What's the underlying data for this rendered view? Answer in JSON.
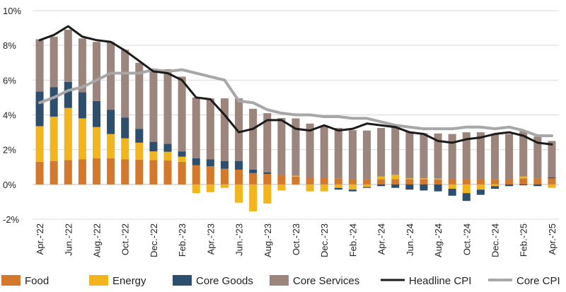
{
  "chart_data": {
    "type": "bar",
    "stacked": true,
    "categories": [
      "Apr.-'22",
      "May-'22",
      "Jun.-'22",
      "Jul.-'22",
      "Aug.-'22",
      "Sep.-'22",
      "Oct.-'22",
      "Nov.-'22",
      "Dec.-'22",
      "Jan.-'23",
      "Feb.-'23",
      "Mar.-'23",
      "Apr.-'23",
      "May-'23",
      "Jun.-'23",
      "Jul.-'23",
      "Aug.-'23",
      "Sep.-'23",
      "Oct.-'23",
      "Nov.-'23",
      "Dec.-'23",
      "Jan.-'24",
      "Feb.-'24",
      "Mar.-'24",
      "Apr.-'24",
      "May-'24",
      "Jun.-'24",
      "Jul.-'24",
      "Aug.-'24",
      "Sep.-'24",
      "Oct.-'24",
      "Nov.-'24",
      "Dec.-'24",
      "Jan.-'25",
      "Feb.-'25",
      "Mar.-'25",
      "Apr.-'25"
    ],
    "tick_labels": [
      "Apr.-'22",
      "Jun.-'22",
      "Aug.-'22",
      "Oct.-'22",
      "Dec.-'22",
      "Feb.-'23",
      "Apr.-'23",
      "Jun.-'23",
      "Aug.-'23",
      "Oct.-'23",
      "Dec.-'23",
      "Feb.-'24",
      "Apr.-'24",
      "Jun.-'24",
      "Aug.-'24",
      "Oct.-'24",
      "Dec.-'24",
      "Feb.-'25",
      "Apr.-'25"
    ],
    "y_ticks": [
      -2,
      0,
      2,
      4,
      6,
      8,
      10
    ],
    "y_tick_labels": [
      "-2%",
      "0%",
      "2%",
      "4%",
      "6%",
      "8%",
      "10%"
    ],
    "ylim": [
      -2,
      10
    ],
    "grid": true,
    "legend_position": "bottom",
    "bar_series": [
      {
        "name": "Food",
        "color": "#d4782b",
        "values": [
          1.3,
          1.35,
          1.4,
          1.45,
          1.5,
          1.5,
          1.45,
          1.42,
          1.4,
          1.38,
          1.3,
          1.1,
          1.05,
          0.9,
          0.85,
          0.65,
          0.6,
          0.52,
          0.45,
          0.4,
          0.4,
          0.35,
          0.32,
          0.3,
          0.3,
          0.3,
          0.3,
          0.3,
          0.28,
          0.3,
          0.3,
          0.3,
          0.3,
          0.3,
          0.35,
          0.35,
          0.35
        ]
      },
      {
        "name": "Energy",
        "color": "#f2b51d",
        "values": [
          2.05,
          2.55,
          3.0,
          2.35,
          1.8,
          1.4,
          1.2,
          0.98,
          0.5,
          0.5,
          0.3,
          -0.5,
          -0.45,
          -0.2,
          -1.05,
          -1.55,
          -1.1,
          -0.35,
          0.05,
          -0.4,
          -0.4,
          -0.2,
          -0.3,
          -0.15,
          0.15,
          0.25,
          0.05,
          0.05,
          0.05,
          -0.25,
          -0.5,
          -0.3,
          -0.1,
          0.0,
          0.1,
          0.0,
          -0.2
        ]
      },
      {
        "name": "Core Goods",
        "color": "#2e4e6e",
        "values": [
          2.0,
          1.7,
          1.5,
          1.5,
          1.5,
          1.4,
          1.2,
          0.8,
          0.55,
          0.45,
          0.3,
          0.4,
          0.4,
          0.45,
          0.5,
          0.2,
          0.1,
          0.0,
          0.0,
          0.0,
          0.0,
          -0.1,
          -0.1,
          -0.05,
          -0.1,
          -0.2,
          -0.3,
          -0.35,
          -0.4,
          -0.4,
          -0.45,
          -0.3,
          -0.15,
          -0.1,
          -0.05,
          -0.1,
          0.05
        ]
      },
      {
        "name": "Core Services",
        "color": "#9b857c",
        "values": [
          3.0,
          2.9,
          3.0,
          3.1,
          3.4,
          3.9,
          3.9,
          3.8,
          4.2,
          4.3,
          4.3,
          3.5,
          3.5,
          3.6,
          3.6,
          3.5,
          3.4,
          3.3,
          3.3,
          3.1,
          3.0,
          2.9,
          2.8,
          2.8,
          2.8,
          2.9,
          2.7,
          2.6,
          2.6,
          2.6,
          2.7,
          2.7,
          2.6,
          2.6,
          2.6,
          2.4,
          2.1
        ]
      }
    ],
    "line_series": [
      {
        "name": "Headline CPI",
        "color": "#1b1b1b",
        "values": [
          8.3,
          8.6,
          9.1,
          8.5,
          8.3,
          8.2,
          7.7,
          7.1,
          6.5,
          6.4,
          6.0,
          5.0,
          4.9,
          4.0,
          3.0,
          3.2,
          3.7,
          3.7,
          3.2,
          3.1,
          3.4,
          3.1,
          3.2,
          3.5,
          3.4,
          3.3,
          3.0,
          2.9,
          2.5,
          2.4,
          2.6,
          2.7,
          2.9,
          3.0,
          2.8,
          2.4,
          2.3
        ]
      },
      {
        "name": "Core CPI",
        "color": "#a7a7a7",
        "values": [
          4.7,
          5.0,
          5.4,
          5.6,
          6.0,
          6.4,
          6.4,
          6.4,
          6.6,
          6.5,
          6.6,
          6.4,
          6.2,
          6.0,
          4.8,
          4.7,
          4.3,
          4.1,
          4.0,
          4.0,
          3.9,
          3.9,
          3.8,
          3.8,
          3.6,
          3.4,
          3.3,
          3.2,
          3.2,
          3.2,
          3.3,
          3.3,
          3.2,
          3.3,
          3.1,
          2.8,
          2.8
        ]
      }
    ],
    "legend": [
      {
        "label": "Food",
        "kind": "box",
        "color": "#d4782b"
      },
      {
        "label": "Energy",
        "kind": "box",
        "color": "#f2b51d"
      },
      {
        "label": "Core Goods",
        "kind": "box",
        "color": "#2e4e6e"
      },
      {
        "label": "Core Services",
        "kind": "box",
        "color": "#9b857c"
      },
      {
        "label": "Headline CPI",
        "kind": "line",
        "color": "#1b1b1b"
      },
      {
        "label": "Core CPI",
        "kind": "line",
        "color": "#a7a7a7"
      }
    ]
  }
}
